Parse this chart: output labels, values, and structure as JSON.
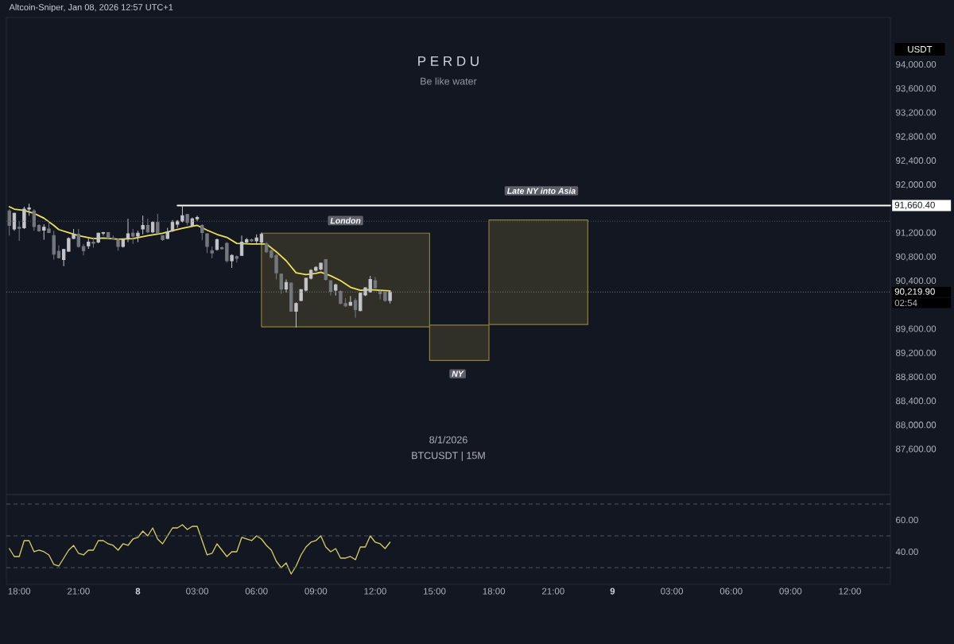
{
  "chart_data": [
    {
      "type": "candlestick",
      "title": "P E R D U",
      "subtitle": "Be like water",
      "ylabel": "USDT",
      "annotations": [
        "Altcoin-Sniper, Jan 08, 2026 12:57 UTC+1",
        "8/1/2026",
        "BTCUSDT | 15M",
        "02:54",
        "Late NY into Asia",
        {
          "text": "London",
          "x": "2026-01-08T10:30",
          "y": 91410
        },
        {
          "text": "NY",
          "x": "2026-01-08T16:10",
          "y": 88860
        }
      ],
      "xlim": [
        "2026-01-07T17:21",
        "2026-01-09T14:03"
      ],
      "ylim": [
        86850,
        94790
      ],
      "yticks": [
        {
          "value": 87600,
          "label": "87,600.00"
        },
        {
          "value": 88000,
          "label": "88,000.00"
        },
        {
          "value": 88400,
          "label": "88,400.00"
        },
        {
          "value": 88800,
          "label": "88,800.00"
        },
        {
          "value": 89200,
          "label": "89,200.00"
        },
        {
          "value": 89600,
          "label": "89,600.00"
        },
        {
          "value": 90400,
          "label": "90,400.00"
        },
        {
          "value": 90800,
          "label": "90,800.00"
        },
        {
          "value": 91200,
          "label": "91,200.00"
        },
        {
          "value": 92000,
          "label": "92,000.00"
        },
        {
          "value": 92400,
          "label": "92,400.00"
        },
        {
          "value": 92800,
          "label": "92,800.00"
        },
        {
          "value": 93200,
          "label": "93,200.00"
        },
        {
          "value": 93600,
          "label": "93,600.00"
        },
        {
          "value": 94000,
          "label": "94,000.00"
        }
      ],
      "tick_labels": "y",
      "ref_lines": [
        {
          "axis": "y",
          "value": 90219.9,
          "label": "90,219.90",
          "line_style": "dotted",
          "color": "#787b86"
        },
        {
          "axis": "y",
          "value": 91400,
          "line_style": "dotted",
          "color": "#4c505b"
        }
      ],
      "series": [
        {
          "type": "histogram",
          "bins": [
            "2026-01-08T06:15",
            "2026-01-08T14:45",
            "2026-01-08T17:45",
            "2026-01-08T22:45"
          ],
          "base": [
            89640,
            89080,
            89680
          ],
          "values": [
            1560,
            590,
            1740
          ],
          "color": "#8c7f3a"
        },
        {
          "type": "line",
          "x": [
            "2026-01-07T17:30",
            "2026-01-07T17:45",
            "2026-01-07T18:15",
            "2026-01-07T18:45",
            "2026-01-07T19:15",
            "2026-01-07T19:45",
            "2026-01-07T20:00",
            "2026-01-07T20:30",
            "2026-01-07T21:00",
            "2026-01-07T21:45",
            "2026-01-07T22:15",
            "2026-01-07T23:00",
            "2026-01-07T23:45",
            "2026-01-08T00:30",
            "2026-01-08T01:15",
            "2026-01-08T01:45",
            "2026-01-08T02:15",
            "2026-01-08T03:00",
            "2026-01-08T03:30",
            "2026-01-08T04:00",
            "2026-01-08T04:30",
            "2026-01-08T05:00",
            "2026-01-08T05:45",
            "2026-01-08T06:30",
            "2026-01-08T07:00",
            "2026-01-08T07:30",
            "2026-01-08T08:00",
            "2026-01-08T08:30",
            "2026-01-08T09:00",
            "2026-01-08T09:15",
            "2026-01-08T09:45",
            "2026-01-08T10:15",
            "2026-01-08T10:45",
            "2026-01-08T11:15",
            "2026-01-08T11:45",
            "2026-01-08T12:15",
            "2026-01-08T12:45"
          ],
          "values": [
            91640,
            91600,
            91580,
            91530,
            91450,
            91330,
            91260,
            91210,
            91160,
            91110,
            91120,
            91100,
            91110,
            91160,
            91200,
            91240,
            91280,
            91330,
            91250,
            91180,
            91130,
            91030,
            91020,
            91020,
            90890,
            90740,
            90540,
            90510,
            90530,
            90550,
            90490,
            90410,
            90300,
            90250,
            90260,
            90250,
            90240
          ],
          "color": "#ece05a"
        },
        {
          "type": "line",
          "x": [
            "2026-01-08T02:00",
            "2026-01-09T14:03"
          ],
          "values": [
            91660.4,
            91660.4
          ],
          "value_labels": [
            null,
            "91,660.40"
          ],
          "color": "#ffffff"
        },
        {
          "x": [
            "2026-01-07T17:45",
            "2026-01-07T18:15",
            "2026-01-07T18:30",
            "2026-01-07T19:15",
            "2026-01-07T20:15",
            "2026-01-07T20:30",
            "2026-01-07T20:45",
            "2026-01-07T21:30",
            "2026-01-07T22:00",
            "2026-01-07T22:15",
            "2026-01-07T23:15",
            "2026-01-07T23:30",
            "2026-01-08T00:00",
            "2026-01-08T00:15",
            "2026-01-08T00:45",
            "2026-01-08T01:30",
            "2026-01-08T01:45",
            "2026-01-08T02:00",
            "2026-01-08T02:15",
            "2026-01-08T02:45",
            "2026-01-08T03:00",
            "2026-01-08T04:00",
            "2026-01-08T04:45",
            "2026-01-08T05:15",
            "2026-01-08T05:30",
            "2026-01-08T06:00",
            "2026-01-08T06:15",
            "2026-01-08T07:30",
            "2026-01-08T08:00",
            "2026-01-08T08:15",
            "2026-01-08T08:30",
            "2026-01-08T08:45",
            "2026-01-08T09:00",
            "2026-01-08T09:15",
            "2026-01-08T10:00",
            "2026-01-08T10:45",
            "2026-01-08T11:15",
            "2026-01-08T11:30",
            "2026-01-08T11:45",
            "2026-01-08T12:45"
          ],
          "ohlc": [
            [
              91270,
              91540,
              91240,
              91530
            ],
            [
              91290,
              91640,
              91270,
              91600
            ],
            [
              91600,
              91690,
              91490,
              91620
            ],
            [
              91250,
              91350,
              91090,
              91300
            ],
            [
              90760,
              90940,
              90650,
              90930
            ],
            [
              90900,
              91130,
              90890,
              91110
            ],
            [
              91110,
              91270,
              91100,
              91180
            ],
            [
              90990,
              91110,
              90940,
              91050
            ],
            [
              91050,
              91210,
              91030,
              91200
            ],
            [
              91200,
              91220,
              91160,
              91210
            ],
            [
              90980,
              91110,
              90960,
              91090
            ],
            [
              91110,
              91440,
              91050,
              91190
            ],
            [
              91150,
              91240,
              91050,
              91200
            ],
            [
              91270,
              91490,
              91180,
              91330
            ],
            [
              91220,
              91400,
              91200,
              91380
            ],
            [
              91110,
              91290,
              91100,
              91220
            ],
            [
              91240,
              91420,
              91220,
              91380
            ],
            [
              91350,
              91420,
              91290,
              91400
            ],
            [
              91400,
              91660.4,
              91380,
              91490
            ],
            [
              91330,
              91460,
              91310,
              91440
            ],
            [
              91440,
              91490,
              91400,
              91460
            ],
            [
              90930,
              91110,
              90910,
              91090
            ],
            [
              90740,
              90850,
              90620,
              90830
            ],
            [
              90830,
              91160,
              90830,
              91050
            ],
            [
              91050,
              91120,
              91020,
              91090
            ],
            [
              91070,
              91180,
              91020,
              91120
            ],
            [
              91050,
              91210,
              91020,
              91180
            ],
            [
              90270,
              90430,
              90210,
              90380
            ],
            [
              89900,
              90050,
              89630,
              90030
            ],
            [
              90080,
              90270,
              90070,
              90260
            ],
            [
              90250,
              90460,
              90230,
              90450
            ],
            [
              90450,
              90600,
              90430,
              90580
            ],
            [
              90580,
              90650,
              90560,
              90630
            ],
            [
              90600,
              90710,
              90580,
              90700
            ],
            [
              90250,
              90360,
              90160,
              90340
            ],
            [
              90000,
              90150,
              89990,
              90050
            ],
            [
              89910,
              90210,
              89900,
              90200
            ],
            [
              90170,
              90300,
              90150,
              90290
            ],
            [
              90220,
              90490,
              90210,
              90430
            ],
            [
              90080,
              90250,
              90030,
              90219.9
            ]
          ],
          "color": "#c4c5ca"
        },
        {
          "x": [
            "2026-01-07T17:30",
            "2026-01-07T18:00",
            "2026-01-07T18:45",
            "2026-01-07T19:00",
            "2026-01-07T19:30",
            "2026-01-07T19:45",
            "2026-01-07T20:00",
            "2026-01-07T21:00",
            "2026-01-07T21:15",
            "2026-01-07T21:45",
            "2026-01-07T22:30",
            "2026-01-07T22:45",
            "2026-01-07T23:00",
            "2026-01-07T23:45",
            "2026-01-08T00:30",
            "2026-01-08T01:00",
            "2026-01-08T01:15",
            "2026-01-08T02:30",
            "2026-01-08T03:15",
            "2026-01-08T03:30",
            "2026-01-08T03:45",
            "2026-01-08T04:15",
            "2026-01-08T04:30",
            "2026-01-08T05:00",
            "2026-01-08T05:45",
            "2026-01-08T06:30",
            "2026-01-08T06:45",
            "2026-01-08T07:00",
            "2026-01-08T07:15",
            "2026-01-08T07:45",
            "2026-01-08T09:30",
            "2026-01-08T09:45",
            "2026-01-08T10:15",
            "2026-01-08T10:30",
            "2026-01-08T11:00",
            "2026-01-08T12:00",
            "2026-01-08T12:15",
            "2026-01-08T12:30"
          ],
          "ohlc": [
            [
              91570,
              91600,
              91160,
              91330
            ],
            [
              91300,
              91400,
              91070,
              91280
            ],
            [
              91570,
              91600,
              91240,
              91310
            ],
            [
              91330,
              91350,
              91220,
              91240
            ],
            [
              91270,
              91400,
              91200,
              91210
            ],
            [
              91160,
              91240,
              90760,
              90850
            ],
            [
              90900,
              91000,
              90780,
              90790
            ],
            [
              91180,
              91270,
              90960,
              90980
            ],
            [
              90980,
              91020,
              90830,
              90910
            ],
            [
              91050,
              91130,
              90960,
              91030
            ],
            [
              91210,
              91220,
              91110,
              91120
            ],
            [
              91120,
              91160,
              91090,
              91100
            ],
            [
              91090,
              91110,
              90910,
              90980
            ],
            [
              91200,
              91270,
              91020,
              91150
            ],
            [
              91330,
              91440,
              91200,
              91220
            ],
            [
              91380,
              91520,
              91200,
              91200
            ],
            [
              91160,
              91160,
              91070,
              91090
            ],
            [
              91510,
              91520,
              91330,
              91380
            ],
            [
              91330,
              91350,
              91080,
              91210
            ],
            [
              91190,
              91200,
              90870,
              90980
            ],
            [
              90910,
              90980,
              90780,
              90870
            ],
            [
              90960,
              90980,
              90930,
              90940
            ],
            [
              91030,
              91050,
              90710,
              90740
            ],
            [
              90810,
              90830,
              90710,
              90780
            ],
            [
              91090,
              91110,
              91050,
              91070
            ],
            [
              91020,
              91050,
              90870,
              90890
            ],
            [
              90910,
              90930,
              90780,
              90800
            ],
            [
              90830,
              90850,
              90430,
              90540
            ],
            [
              90520,
              90530,
              90190,
              90270
            ],
            [
              90370,
              90380,
              89900,
              89900
            ],
            [
              90760,
              90770,
              90410,
              90430
            ],
            [
              90410,
              90410,
              90160,
              90230
            ],
            [
              90230,
              90250,
              90020,
              90030
            ],
            [
              90030,
              90120,
              89970,
              89990
            ],
            [
              90080,
              90120,
              89790,
              89930
            ],
            [
              90410,
              90470,
              90270,
              90290
            ],
            [
              90230,
              90250,
              90100,
              90190
            ],
            [
              90220,
              90230,
              90060,
              90080
            ]
          ],
          "color": "#75777f"
        }
      ]
    },
    {
      "type": "line",
      "color": "#d8d064",
      "x": [
        "2026-01-07T17:30",
        "2026-01-07T17:45",
        "2026-01-07T18:00",
        "2026-01-07T18:15",
        "2026-01-07T18:30",
        "2026-01-07T18:45",
        "2026-01-07T19:00",
        "2026-01-07T19:15",
        "2026-01-07T19:30",
        "2026-01-07T19:45",
        "2026-01-07T20:00",
        "2026-01-07T20:15",
        "2026-01-07T20:30",
        "2026-01-07T20:45",
        "2026-01-07T21:00",
        "2026-01-07T21:15",
        "2026-01-07T21:30",
        "2026-01-07T21:45",
        "2026-01-07T22:00",
        "2026-01-07T22:15",
        "2026-01-07T22:30",
        "2026-01-07T22:45",
        "2026-01-07T23:00",
        "2026-01-07T23:15",
        "2026-01-07T23:30",
        "2026-01-07T23:45",
        "2026-01-08T00:00",
        "2026-01-08T00:15",
        "2026-01-08T00:30",
        "2026-01-08T00:45",
        "2026-01-08T01:00",
        "2026-01-08T01:15",
        "2026-01-08T01:30",
        "2026-01-08T01:45",
        "2026-01-08T02:00",
        "2026-01-08T02:15",
        "2026-01-08T02:30",
        "2026-01-08T02:45",
        "2026-01-08T03:00",
        "2026-01-08T03:15",
        "2026-01-08T03:30",
        "2026-01-08T03:45",
        "2026-01-08T04:00",
        "2026-01-08T04:15",
        "2026-01-08T04:30",
        "2026-01-08T04:45",
        "2026-01-08T05:00",
        "2026-01-08T05:15",
        "2026-01-08T05:30",
        "2026-01-08T05:45",
        "2026-01-08T06:00",
        "2026-01-08T06:15",
        "2026-01-08T06:30",
        "2026-01-08T06:45",
        "2026-01-08T07:00",
        "2026-01-08T07:15",
        "2026-01-08T07:30",
        "2026-01-08T07:45",
        "2026-01-08T08:00",
        "2026-01-08T08:15",
        "2026-01-08T08:30",
        "2026-01-08T08:45",
        "2026-01-08T09:00",
        "2026-01-08T09:15",
        "2026-01-08T09:30",
        "2026-01-08T09:45",
        "2026-01-08T10:00",
        "2026-01-08T10:15",
        "2026-01-08T10:30",
        "2026-01-08T10:45",
        "2026-01-08T11:00",
        "2026-01-08T11:15",
        "2026-01-08T11:30",
        "2026-01-08T11:45",
        "2026-01-08T12:00",
        "2026-01-08T12:15",
        "2026-01-08T12:30",
        "2026-01-08T12:45"
      ],
      "values": [
        42,
        37,
        37,
        47,
        47,
        40,
        41,
        40,
        38,
        32,
        31,
        36,
        41,
        44,
        39,
        38,
        41,
        41,
        47,
        47,
        45,
        44,
        41,
        45,
        44,
        48,
        49,
        53,
        50,
        55,
        48,
        45,
        50,
        55,
        55,
        57,
        54,
        56,
        56,
        47,
        38,
        39,
        45,
        41,
        37,
        40,
        40,
        49,
        48,
        47,
        50,
        48,
        44,
        41,
        34,
        30,
        33,
        26,
        31,
        38,
        43,
        46,
        47,
        50,
        43,
        40,
        42,
        36,
        36,
        37,
        35,
        43,
        43,
        50,
        46,
        45,
        42,
        46
      ],
      "xlim": [
        "2026-01-07T17:21",
        "2026-01-09T14:03"
      ],
      "ylim": [
        19.5,
        76
      ],
      "xticks": [
        {
          "value": "2026-01-07T18:00",
          "label": "18:00"
        },
        {
          "value": "2026-01-07T21:00",
          "label": "21:00"
        },
        {
          "value": "2026-01-08T00:00",
          "label": "8"
        },
        {
          "value": "2026-01-08T03:00",
          "label": "03:00"
        },
        {
          "value": "2026-01-08T06:00",
          "label": "06:00"
        },
        {
          "value": "2026-01-08T09:00",
          "label": "09:00"
        },
        {
          "value": "2026-01-08T12:00",
          "label": "12:00"
        },
        {
          "value": "2026-01-08T15:00",
          "label": "15:00"
        },
        {
          "value": "2026-01-08T18:00",
          "label": "18:00"
        },
        {
          "value": "2026-01-08T21:00",
          "label": "21:00"
        },
        {
          "value": "2026-01-09T00:00",
          "label": "9"
        },
        {
          "value": "2026-01-09T03:00",
          "label": "03:00"
        },
        {
          "value": "2026-01-09T06:00",
          "label": "06:00"
        },
        {
          "value": "2026-01-09T09:00",
          "label": "09:00"
        },
        {
          "value": "2026-01-09T12:00",
          "label": "12:00"
        }
      ],
      "yticks": [
        {
          "value": 60,
          "label": "60.00"
        },
        {
          "value": 40,
          "label": "40.00"
        }
      ],
      "ref_lines": [
        {
          "axis": "y",
          "value": 70,
          "line_style": "dashed",
          "color": "#50545f"
        },
        {
          "axis": "y",
          "value": 50,
          "line_style": "dashed",
          "color": "#50545f"
        },
        {
          "axis": "y",
          "value": 30,
          "line_style": "dashed",
          "color": "#50545f"
        }
      ]
    }
  ]
}
